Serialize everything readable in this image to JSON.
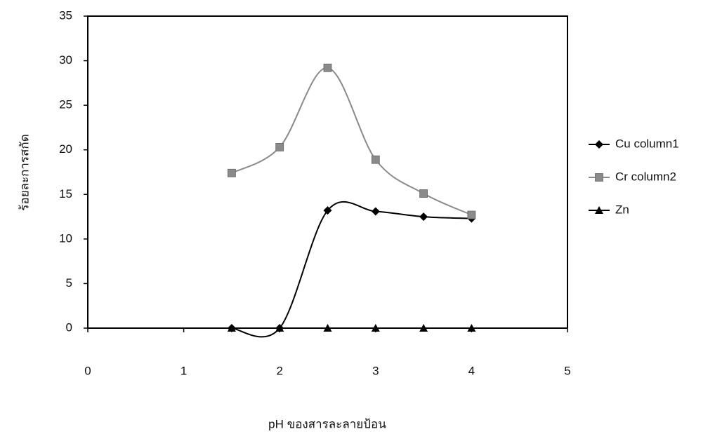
{
  "chart_data": {
    "type": "line",
    "smooth": true,
    "x_label": "pH ของสารละลายป้อน",
    "y_label": "ร้อยละการสกัด",
    "x": [
      1.5,
      2,
      2.5,
      3,
      3.5,
      4
    ],
    "series": [
      {
        "name": "Cu column1",
        "color": "#000000",
        "marker": "diamond",
        "values": [
          0,
          0,
          13.2,
          13.1,
          12.5,
          12.3
        ]
      },
      {
        "name": "Cr column2",
        "color": "#8a8a8a",
        "marker": "square",
        "values": [
          17.4,
          20.3,
          29.2,
          18.9,
          15.1,
          12.7
        ]
      },
      {
        "name": "Zn",
        "color": "#000000",
        "marker": "triangle",
        "values": [
          0,
          0,
          0,
          0,
          0,
          0
        ]
      }
    ],
    "xlim": [
      0,
      5
    ],
    "xticks": [
      0,
      1,
      2,
      3,
      4,
      5
    ],
    "ylim": [
      0,
      35
    ],
    "yticks": [
      0,
      5,
      10,
      15,
      20,
      25,
      30,
      35
    ],
    "legend": "right"
  }
}
